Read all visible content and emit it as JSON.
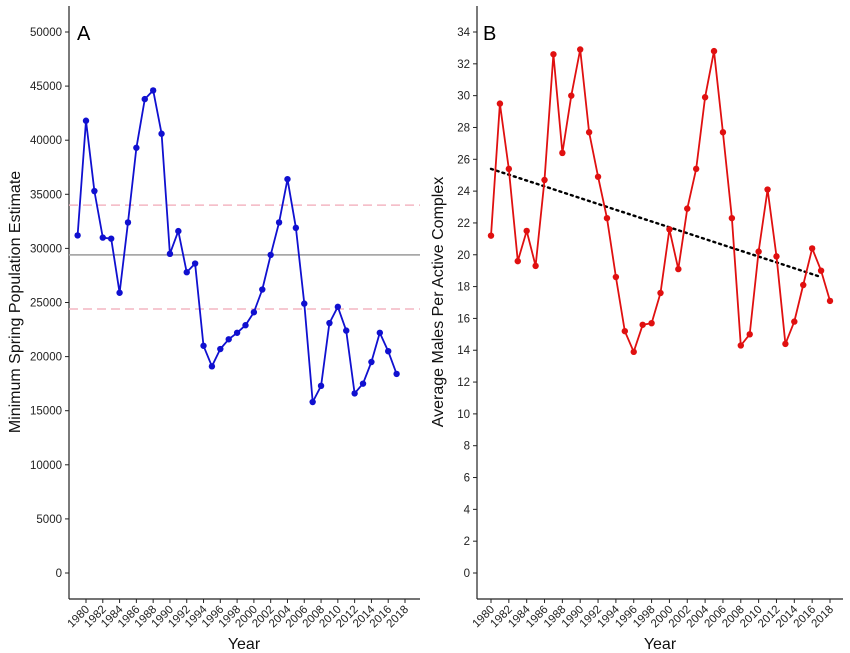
{
  "chart_data": [
    {
      "type": "line",
      "panel_label": "A",
      "xlabel": "Year",
      "ylabel": "Minimum Spring Population Estimate",
      "xlim": [
        1980,
        2018
      ],
      "ylim": [
        0,
        50000
      ],
      "y_ticks": [
        0,
        5000,
        10000,
        15000,
        20000,
        25000,
        30000,
        35000,
        40000,
        45000,
        50000
      ],
      "x_ticks": [
        1980,
        1982,
        1984,
        1986,
        1988,
        1990,
        1992,
        1994,
        1996,
        1998,
        2000,
        2002,
        2004,
        2006,
        2008,
        2010,
        2012,
        2014,
        2016,
        2018
      ],
      "grid": false,
      "series": [
        {
          "color": "#1010d0",
          "x": [
            1979,
            1980,
            1981,
            1982,
            1983,
            1984,
            1985,
            1986,
            1987,
            1988,
            1989,
            1990,
            1991,
            1992,
            1993,
            1994,
            1995,
            1996,
            1997,
            1998,
            1999,
            2000,
            2001,
            2002,
            2003,
            2004,
            2005,
            2006,
            2007,
            2008,
            2009,
            2010,
            2011,
            2012,
            2013,
            2014,
            2015,
            2016,
            2017
          ],
          "y": [
            31200,
            41800,
            35300,
            31000,
            30900,
            25900,
            32400,
            39300,
            43800,
            44600,
            40600,
            29500,
            31600,
            27800,
            28600,
            21000,
            19100,
            20700,
            21600,
            22200,
            22900,
            24100,
            26200,
            29400,
            32400,
            36400,
            31900,
            24900,
            15800,
            17300,
            23100,
            24600,
            22400,
            16600,
            17500,
            19500,
            22200,
            20500,
            18400
          ]
        }
      ],
      "reference_lines": [
        {
          "kind": "mean",
          "y": 29400,
          "color": "#a8a8a8",
          "style": "solid"
        },
        {
          "kind": "upper",
          "y": 34000,
          "color": "#f4b6c2",
          "style": "dashed"
        },
        {
          "kind": "lower",
          "y": 24400,
          "color": "#f4b6c2",
          "style": "dashed"
        }
      ]
    },
    {
      "type": "line",
      "panel_label": "B",
      "xlabel": "Year",
      "ylabel": "Average Males Per Active Complex",
      "xlim": [
        1980,
        2018
      ],
      "ylim": [
        0,
        34
      ],
      "y_ticks": [
        0,
        2,
        4,
        6,
        8,
        10,
        12,
        14,
        16,
        18,
        20,
        22,
        24,
        26,
        28,
        30,
        32,
        34
      ],
      "x_ticks": [
        1980,
        1982,
        1984,
        1986,
        1988,
        1990,
        1992,
        1994,
        1996,
        1998,
        2000,
        2002,
        2004,
        2006,
        2008,
        2010,
        2012,
        2014,
        2016,
        2018
      ],
      "grid": false,
      "series": [
        {
          "color": "#e01010",
          "x": [
            1980,
            1981,
            1982,
            1983,
            1984,
            1985,
            1986,
            1987,
            1988,
            1989,
            1990,
            1991,
            1992,
            1993,
            1994,
            1995,
            1996,
            1997,
            1998,
            1999,
            2000,
            2001,
            2002,
            2003,
            2004,
            2005,
            2006,
            2007,
            2008,
            2009,
            2010,
            2011,
            2012,
            2013,
            2014,
            2015,
            2016,
            2017,
            2018
          ],
          "y": [
            21.2,
            29.5,
            25.4,
            19.6,
            21.5,
            19.3,
            24.7,
            32.6,
            26.4,
            30.0,
            32.9,
            27.7,
            24.9,
            22.3,
            18.6,
            15.2,
            13.9,
            15.6,
            15.7,
            17.6,
            21.6,
            19.1,
            22.9,
            25.4,
            29.9,
            32.8,
            27.7,
            22.3,
            14.3,
            15.0,
            20.2,
            24.1,
            19.9,
            14.4,
            15.8,
            18.1,
            20.4,
            19.0,
            17.1
          ]
        }
      ],
      "trend_line": {
        "x": [
          1980,
          2017
        ],
        "y": [
          25.4,
          18.6
        ],
        "color": "#000000",
        "style": "dotted"
      }
    }
  ]
}
